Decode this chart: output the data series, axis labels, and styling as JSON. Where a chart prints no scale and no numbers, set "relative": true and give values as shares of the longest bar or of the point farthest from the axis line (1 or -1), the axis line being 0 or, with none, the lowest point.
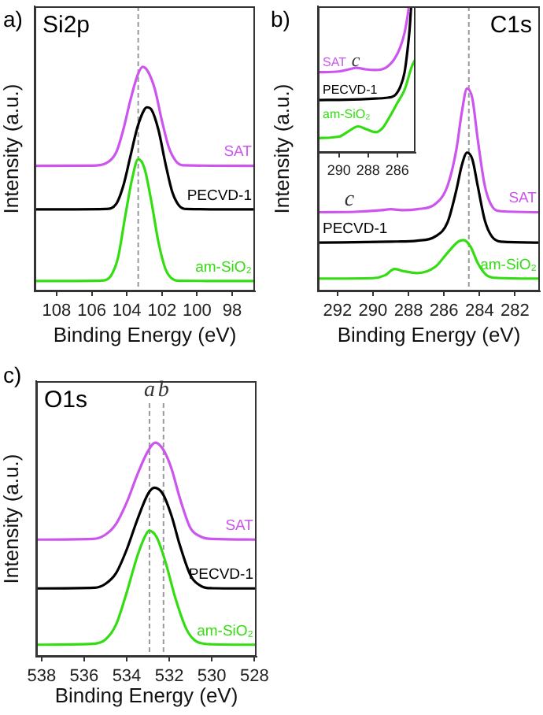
{
  "chart_data": [
    {
      "type": "line",
      "title": "Si2p",
      "xlabel": "Binding Energy (eV)",
      "ylabel": "Intensity (a.u.)",
      "relative": true,
      "xlim": [
        109.25,
        96.7
      ],
      "xticks": [
        108,
        106,
        104,
        102,
        100,
        98
      ],
      "annotations": [
        "a)"
      ],
      "ref_lines": [
        {
          "axis": "x",
          "value": 103.35,
          "color": "#999999",
          "line_style": "dashed"
        }
      ],
      "series": [
        {
          "name": "SAT",
          "color": "#cc55ee",
          "x": [
            109.25,
            106,
            105.2,
            104.6,
            104.2,
            103.8,
            103.4,
            103.1,
            102.8,
            102.4,
            102.0,
            101.6,
            101.2,
            100.8,
            96.7
          ],
          "values": [
            0.559,
            0.56,
            0.57,
            0.62,
            0.72,
            0.85,
            0.96,
            1.0,
            0.98,
            0.9,
            0.76,
            0.64,
            0.58,
            0.562,
            0.559
          ]
        },
        {
          "name": "PECVD-1",
          "color": "#000000",
          "x": [
            109.25,
            105.2,
            104.6,
            104.2,
            103.8,
            103.4,
            103.0,
            102.85,
            102.6,
            102.2,
            101.8,
            101.4,
            101.0,
            100.6,
            96.7
          ],
          "values": [
            0.365,
            0.367,
            0.39,
            0.47,
            0.6,
            0.73,
            0.81,
            0.82,
            0.81,
            0.72,
            0.57,
            0.44,
            0.38,
            0.367,
            0.365
          ]
        },
        {
          "name": "am-SiO₂",
          "color": "#33dd11",
          "x": [
            109.25,
            105.4,
            104.9,
            104.5,
            104.1,
            103.7,
            103.35,
            103.0,
            102.6,
            102.2,
            101.8,
            101.4,
            101.0,
            96.7
          ],
          "values": [
            0.046,
            0.048,
            0.07,
            0.15,
            0.33,
            0.5,
            0.589,
            0.55,
            0.4,
            0.22,
            0.1,
            0.055,
            0.047,
            0.046
          ]
        }
      ]
    },
    {
      "type": "line",
      "title": "C1s",
      "xlabel": "Binding Energy (eV)",
      "ylabel": "Intensity (a.u.)",
      "relative": true,
      "xlim": [
        293.1,
        280.6
      ],
      "xticks": [
        292,
        290,
        288,
        286,
        284,
        282
      ],
      "annotations": [
        "b)",
        "c"
      ],
      "ref_lines": [
        {
          "axis": "x",
          "value": 284.6,
          "color": "#999999",
          "line_style": "dashed"
        }
      ],
      "series": [
        {
          "name": "SAT",
          "color": "#cc55ee",
          "x": [
            293.1,
            291,
            289.5,
            289,
            288.3,
            287.5,
            286.5,
            285.8,
            285.3,
            285.0,
            284.7,
            284.4,
            284.1,
            283.7,
            283.3,
            282.8,
            280.6
          ],
          "values": [
            0.39,
            0.392,
            0.4,
            0.405,
            0.4,
            0.405,
            0.43,
            0.52,
            0.7,
            0.88,
            1.0,
            0.95,
            0.75,
            0.52,
            0.42,
            0.395,
            0.39
          ]
        },
        {
          "name": "PECVD-1",
          "color": "#000000",
          "x": [
            293.1,
            289,
            287.5,
            286.5,
            285.8,
            285.3,
            285.0,
            284.7,
            284.4,
            284.1,
            283.7,
            283.3,
            282.8,
            280.6
          ],
          "values": [
            0.24,
            0.245,
            0.25,
            0.27,
            0.34,
            0.5,
            0.62,
            0.684,
            0.65,
            0.52,
            0.35,
            0.27,
            0.245,
            0.24
          ]
        },
        {
          "name": "am-SiO₂",
          "color": "#33dd11",
          "x": [
            293.1,
            290,
            289.3,
            288.8,
            288.3,
            287.5,
            286.5,
            285.8,
            285.2,
            284.9,
            284.5,
            284.1,
            283.6,
            283.0,
            280.6
          ],
          "values": [
            0.063,
            0.065,
            0.08,
            0.11,
            0.1,
            0.09,
            0.12,
            0.19,
            0.245,
            0.253,
            0.22,
            0.14,
            0.08,
            0.066,
            0.063
          ]
        }
      ]
    },
    {
      "type": "line",
      "relative": true,
      "xlim": [
        291.45,
        284.75
      ],
      "xticks": [
        290,
        288,
        286
      ],
      "annotations": [
        "c"
      ],
      "series": [
        {
          "name": "SAT",
          "color": "#cc55ee",
          "x": [
            291.45,
            290,
            289.3,
            288.8,
            288.2,
            287.5,
            286.8,
            286.2,
            285.8,
            285.5,
            285.3,
            285.2
          ],
          "values": [
            0.55,
            0.555,
            0.57,
            0.58,
            0.57,
            0.565,
            0.58,
            0.64,
            0.72,
            0.82,
            0.93,
            1.0
          ]
        },
        {
          "name": "PECVD-1",
          "color": "#000000",
          "x": [
            291.45,
            289.5,
            288.5,
            287.5,
            286.8,
            286.2,
            285.8,
            285.5,
            285.3,
            285.15,
            285.05
          ],
          "values": [
            0.36,
            0.362,
            0.365,
            0.37,
            0.375,
            0.39,
            0.45,
            0.55,
            0.7,
            0.85,
            1.0
          ]
        },
        {
          "name": "am-SiO₂",
          "color": "#33dd11",
          "x": [
            291.45,
            290,
            289.3,
            288.7,
            288.1,
            287.5,
            287,
            286.5,
            286,
            285.5,
            285.0,
            284.75
          ],
          "values": [
            0.1,
            0.11,
            0.15,
            0.18,
            0.16,
            0.14,
            0.17,
            0.25,
            0.34,
            0.43,
            0.59,
            0.64
          ]
        }
      ]
    },
    {
      "type": "line",
      "title": "O1s",
      "xlabel": "Binding Energy (eV)",
      "ylabel": "Intensity (a.u.)",
      "relative": true,
      "xlim": [
        538.25,
        527.9
      ],
      "xticks": [
        538,
        536,
        534,
        532,
        530,
        528
      ],
      "annotations": [
        "c)"
      ],
      "ref_lines": [
        {
          "axis": "x",
          "value": 532.93,
          "label": "a",
          "color": "#999999",
          "line_style": "dashed"
        },
        {
          "axis": "x",
          "value": 532.27,
          "label": "b",
          "color": "#999999",
          "line_style": "dashed"
        }
      ],
      "series": [
        {
          "name": "SAT",
          "color": "#cc55ee",
          "x": [
            538.25,
            535.6,
            535,
            534.5,
            534,
            533.5,
            533,
            532.66,
            532.3,
            531.9,
            531.5,
            531,
            530.5,
            530,
            527.9
          ],
          "values": [
            0.547,
            0.55,
            0.57,
            0.62,
            0.72,
            0.85,
            0.96,
            1.0,
            0.97,
            0.88,
            0.74,
            0.6,
            0.56,
            0.55,
            0.547
          ]
        },
        {
          "name": "PECVD-1",
          "color": "#000000",
          "x": [
            538.25,
            535.5,
            535,
            534.5,
            534,
            533.5,
            533,
            532.7,
            532.3,
            531.9,
            531.5,
            531,
            530.5,
            530,
            527.9
          ],
          "values": [
            0.319,
            0.322,
            0.34,
            0.39,
            0.5,
            0.64,
            0.76,
            0.789,
            0.76,
            0.66,
            0.52,
            0.38,
            0.33,
            0.32,
            0.319
          ]
        },
        {
          "name": "am-SiO₂",
          "color": "#33dd11",
          "x": [
            538.25,
            535.6,
            535,
            534.5,
            534,
            533.5,
            533.1,
            532.95,
            532.6,
            532.2,
            531.7,
            531.2,
            530.7,
            530,
            527.9
          ],
          "values": [
            0.056,
            0.06,
            0.08,
            0.15,
            0.3,
            0.47,
            0.57,
            0.588,
            0.56,
            0.45,
            0.27,
            0.13,
            0.07,
            0.058,
            0.056
          ]
        }
      ]
    }
  ]
}
